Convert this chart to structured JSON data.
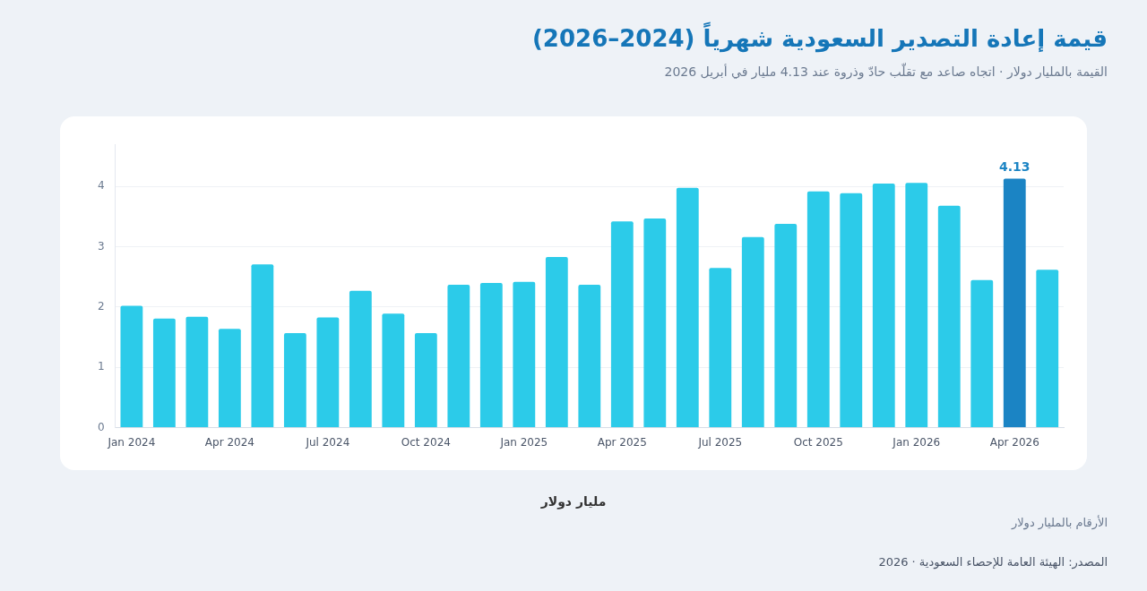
{
  "chart_data": {
    "type": "bar",
    "title": "قيمة إعادة التصدير السعودية شهرياً (2024–2026)",
    "subtitle": "القيمة بالمليار دولار · اتجاه صاعد مع تقلّب حادّ وذروة عند 4.13 مليار في أبريل 2026",
    "xlabel": "مليار دولار",
    "categories": [
      "Jan 2024",
      null,
      null,
      "Apr 2024",
      null,
      null,
      "Jul 2024",
      null,
      null,
      "Oct 2024",
      null,
      null,
      "Jan 2025",
      null,
      null,
      "Apr 2025",
      null,
      null,
      "Jul 2025",
      null,
      null,
      "Oct 2025",
      null,
      null,
      "Jan 2026",
      null,
      null,
      "Apr 2026",
      null
    ],
    "values": [
      2.02,
      1.81,
      1.84,
      1.64,
      2.71,
      1.57,
      1.83,
      2.27,
      1.89,
      1.57,
      2.37,
      2.4,
      2.42,
      2.83,
      2.37,
      3.42,
      3.47,
      3.98,
      2.65,
      3.16,
      3.38,
      3.92,
      3.89,
      4.05,
      4.06,
      3.68,
      2.45,
      4.13,
      2.62
    ],
    "colors": [
      "#2ccbe9",
      "#2ccbe9",
      "#2ccbe9",
      "#2ccbe9",
      "#2ccbe9",
      "#2ccbe9",
      "#2ccbe9",
      "#2ccbe9",
      "#2ccbe9",
      "#2ccbe9",
      "#2ccbe9",
      "#2ccbe9",
      "#2ccbe9",
      "#2ccbe9",
      "#2ccbe9",
      "#2ccbe9",
      "#2ccbe9",
      "#2ccbe9",
      "#2ccbe9",
      "#2ccbe9",
      "#2ccbe9",
      "#2ccbe9",
      "#2ccbe9",
      "#2ccbe9",
      "#2ccbe9",
      "#2ccbe9",
      "#2ccbe9",
      "#1b84c4",
      "#2ccbe9"
    ],
    "value_labels": [
      null,
      null,
      null,
      null,
      null,
      null,
      null,
      null,
      null,
      null,
      null,
      null,
      null,
      null,
      null,
      null,
      null,
      null,
      null,
      null,
      null,
      null,
      null,
      null,
      null,
      null,
      null,
      "4.13",
      null
    ],
    "ylim": [
      0,
      4.7
    ],
    "yticks": [
      0,
      1,
      2,
      3,
      4
    ],
    "grid": "y",
    "legend": false,
    "annotations": [
      "الأرقام بالمليار دولار",
      "المصدر: الهيئة العامة للإحصاء السعودية · 2026"
    ]
  }
}
